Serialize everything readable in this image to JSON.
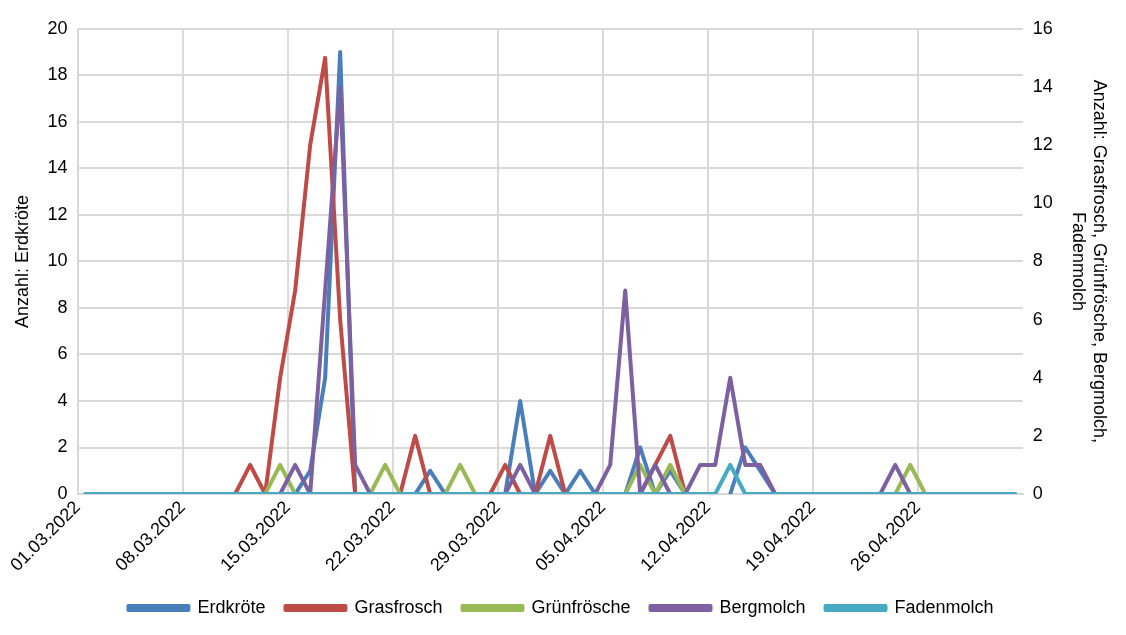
{
  "chart_data": {
    "type": "line",
    "ylabel": "Anzahl: Erdkröte",
    "y2label": "Anzahl: Grasfrosch, Grünfrösche, Bergmolch, Fadenmolch",
    "x": [
      "2022-03-01T12:00",
      "2022-03-02T12:00",
      "2022-03-03T12:00",
      "2022-03-04T12:00",
      "2022-03-05T12:00",
      "2022-03-06T12:00",
      "2022-03-07T12:00",
      "2022-03-08T12:00",
      "2022-03-09T12:00",
      "2022-03-10T12:00",
      "2022-03-11T12:00",
      "2022-03-12T12:00",
      "2022-03-13T12:00",
      "2022-03-14T12:00",
      "2022-03-15T12:00",
      "2022-03-16T12:00",
      "2022-03-17T12:00",
      "2022-03-18T12:00",
      "2022-03-19T12:00",
      "2022-03-20T12:00",
      "2022-03-21T12:00",
      "2022-03-22T12:00",
      "2022-03-23T12:00",
      "2022-03-24T12:00",
      "2022-03-25T12:00",
      "2022-03-26T12:00",
      "2022-03-27T12:00",
      "2022-03-28T12:00",
      "2022-03-29T12:00",
      "2022-03-30T12:00",
      "2022-03-31T12:00",
      "2022-04-01T12:00",
      "2022-04-02T12:00",
      "2022-04-03T12:00",
      "2022-04-04T12:00",
      "2022-04-05T12:00",
      "2022-04-06T12:00",
      "2022-04-07T12:00",
      "2022-04-08T12:00",
      "2022-04-09T12:00",
      "2022-04-10T12:00",
      "2022-04-11T12:00",
      "2022-04-12T12:00",
      "2022-04-13T12:00",
      "2022-04-14T12:00",
      "2022-04-15T12:00",
      "2022-04-16T12:00",
      "2022-04-17T12:00",
      "2022-04-18T12:00",
      "2022-04-19T12:00",
      "2022-04-20T12:00",
      "2022-04-21T12:00",
      "2022-04-22T12:00",
      "2022-04-23T12:00",
      "2022-04-24T12:00",
      "2022-04-25T12:00",
      "2022-04-26T12:00",
      "2022-04-27T12:00",
      "2022-04-28T12:00",
      "2022-04-29T12:00",
      "2022-04-30T12:00",
      "2022-05-01T12:00",
      "2022-05-02T12:00"
    ],
    "series": [
      {
        "name": "Erdkröte",
        "color": "#4a7ebb",
        "values": [
          null,
          null,
          null,
          null,
          null,
          null,
          null,
          null,
          null,
          null,
          null,
          null,
          null,
          null,
          0,
          1,
          5,
          19,
          0,
          null,
          null,
          null,
          0,
          1,
          0,
          null,
          null,
          null,
          0,
          4,
          0,
          1,
          0,
          1,
          0,
          null,
          0,
          2,
          0,
          1,
          0,
          null,
          null,
          0,
          2,
          1,
          0,
          null,
          null,
          null,
          null,
          null,
          null,
          null,
          null,
          null,
          null,
          null,
          null,
          null,
          null,
          null,
          null
        ]
      },
      {
        "name": "Grasfrosch",
        "color": "#be4b48",
        "axis": "y2",
        "values": [
          null,
          null,
          null,
          null,
          null,
          null,
          null,
          null,
          null,
          null,
          0,
          1,
          0,
          4,
          7,
          12,
          15,
          6,
          0,
          null,
          null,
          0,
          2,
          0,
          null,
          null,
          null,
          0,
          1,
          0,
          0,
          2,
          0,
          null,
          null,
          null,
          null,
          0,
          1,
          2,
          0,
          null,
          null,
          null,
          null,
          null,
          null,
          null,
          null,
          null,
          null,
          null,
          null,
          null,
          null,
          null,
          null,
          null,
          null,
          null,
          null,
          null,
          null
        ]
      },
      {
        "name": "Grünfrösche",
        "color": "#98b954",
        "axis": "y2",
        "values": [
          null,
          null,
          null,
          null,
          null,
          null,
          null,
          null,
          null,
          null,
          null,
          null,
          0,
          1,
          0,
          null,
          null,
          null,
          null,
          0,
          1,
          0,
          null,
          null,
          0,
          1,
          0,
          null,
          null,
          null,
          null,
          null,
          null,
          null,
          null,
          null,
          0,
          1,
          0,
          1,
          0,
          null,
          null,
          null,
          null,
          null,
          null,
          null,
          null,
          null,
          null,
          null,
          null,
          null,
          0,
          1,
          0,
          null,
          null,
          null,
          null,
          null,
          null
        ]
      },
      {
        "name": "Bergmolch",
        "color": "#7d60a0",
        "axis": "y2",
        "values": [
          null,
          null,
          null,
          null,
          null,
          null,
          null,
          null,
          null,
          null,
          null,
          null,
          null,
          0,
          1,
          0,
          7,
          14,
          1,
          0,
          null,
          null,
          null,
          null,
          null,
          null,
          null,
          null,
          0,
          1,
          0,
          null,
          null,
          null,
          0,
          1,
          7,
          0,
          1,
          0,
          0,
          1,
          1,
          4,
          1,
          1,
          0,
          null,
          null,
          null,
          null,
          null,
          null,
          0,
          1,
          0,
          null,
          null,
          null,
          null,
          null,
          null,
          null
        ]
      },
      {
        "name": "Fadenmolch",
        "color": "#46aac5",
        "axis": "y2",
        "values": [
          0,
          0,
          0,
          0,
          0,
          0,
          0,
          0,
          0,
          0,
          0,
          0,
          0,
          0,
          0,
          0,
          0,
          0,
          0,
          0,
          0,
          0,
          0,
          0,
          0,
          0,
          0,
          0,
          0,
          0,
          0,
          0,
          0,
          0,
          0,
          0,
          0,
          0,
          0,
          0,
          0,
          0,
          0,
          1,
          0,
          0,
          0,
          0,
          0,
          0,
          0,
          0,
          0,
          0,
          0,
          0,
          0,
          0,
          0,
          0,
          0,
          0,
          0
        ]
      }
    ],
    "xlim": [
      "2022-03-01",
      "2022-05-03"
    ],
    "xticks": [
      {
        "value": "2022-03-01",
        "label": "01.03.2022"
      },
      {
        "value": "2022-03-08",
        "label": "08.03.2022"
      },
      {
        "value": "2022-03-15",
        "label": "15.03.2022"
      },
      {
        "value": "2022-03-22",
        "label": "22.03.2022"
      },
      {
        "value": "2022-03-29",
        "label": "29.03.2022"
      },
      {
        "value": "2022-04-05",
        "label": "05.04.2022"
      },
      {
        "value": "2022-04-12",
        "label": "12.04.2022"
      },
      {
        "value": "2022-04-19",
        "label": "19.04.2022"
      },
      {
        "value": "2022-04-26",
        "label": "26.04.2022"
      }
    ],
    "ylim": [
      0,
      20
    ],
    "yticks": [
      0,
      2,
      4,
      6,
      8,
      10,
      12,
      14,
      16,
      18,
      20
    ],
    "y2lim": [
      0,
      16
    ],
    "y2ticks": [
      0,
      2,
      4,
      6,
      8,
      10,
      12,
      14,
      16
    ],
    "grid": true,
    "legend": "bottom",
    "marker": "none",
    "line_style": "solid"
  }
}
